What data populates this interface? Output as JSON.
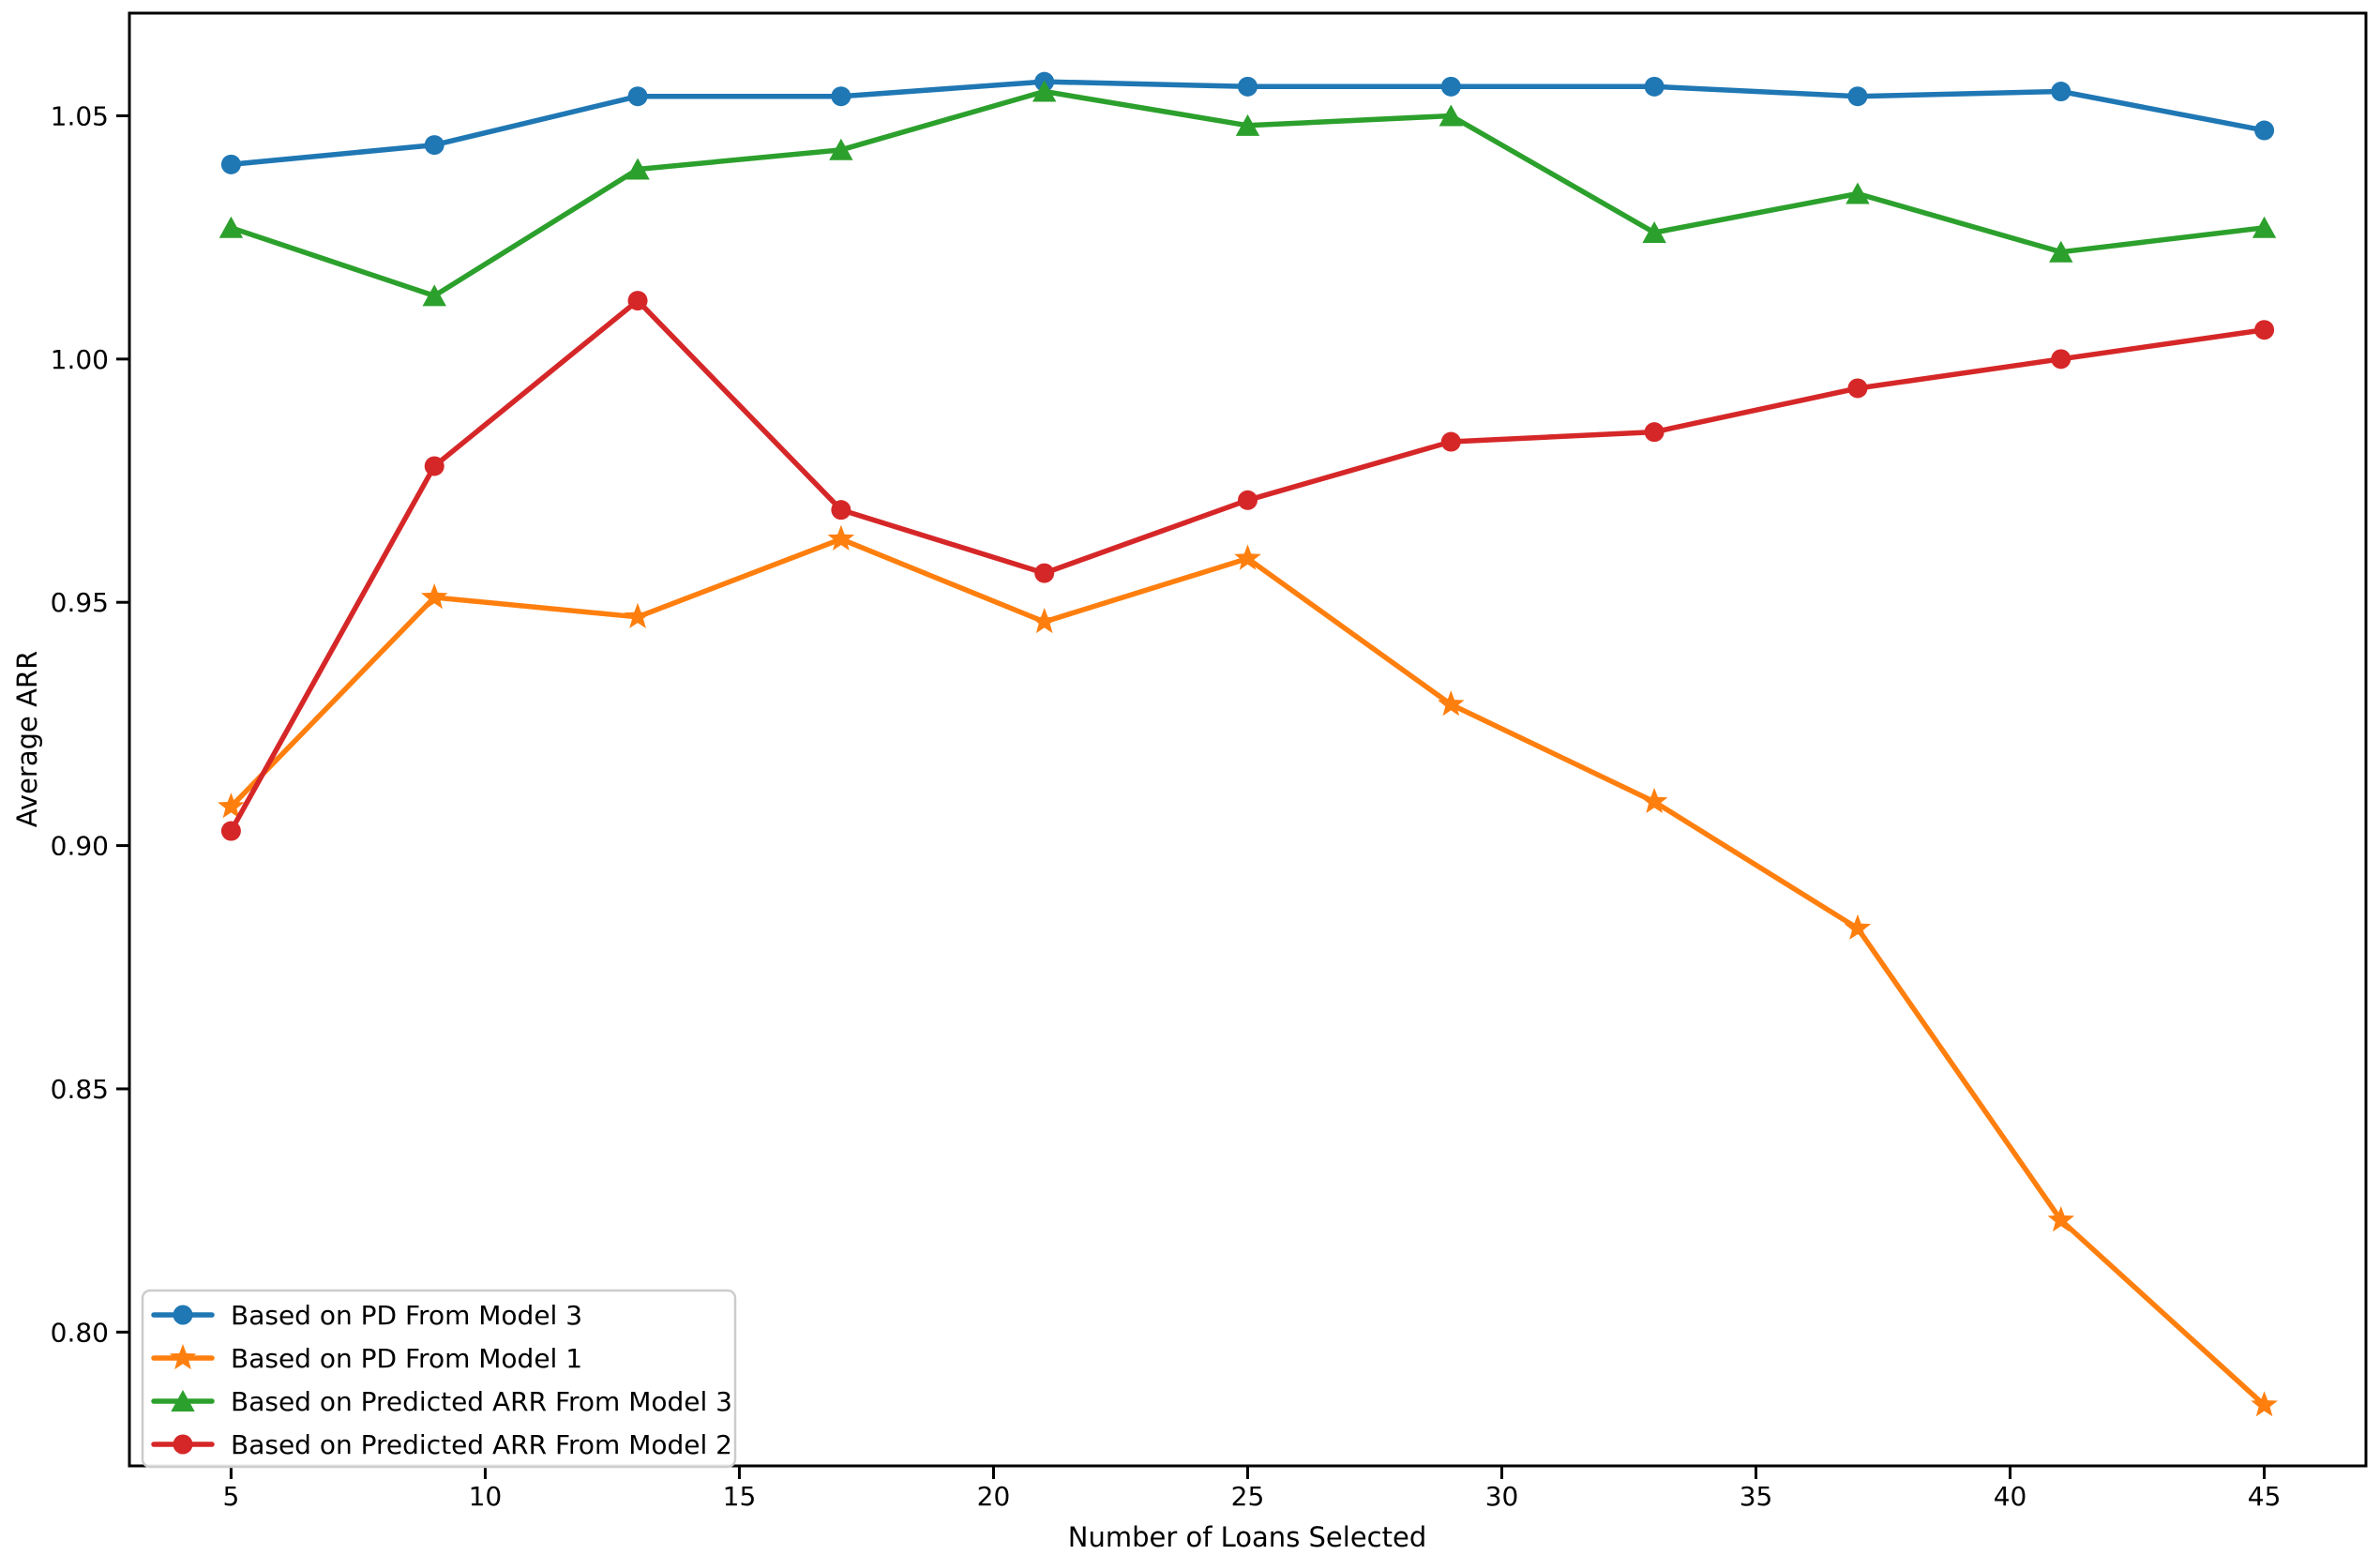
{
  "figure": {
    "background": "#ffffff",
    "axis_color": "#000000",
    "legend_border_color": "#cccccc"
  },
  "chart_data": {
    "type": "line",
    "title": "",
    "xlabel": "Number of Loans Selected",
    "ylabel": "Average ARR",
    "xlim": [
      3,
      47
    ],
    "ylim": [
      0.7725,
      1.0711
    ],
    "grid": false,
    "legend_position": "lower left",
    "x": [
      5,
      9,
      13,
      17,
      21,
      25,
      29,
      33,
      37,
      41,
      45
    ],
    "x_ticks": [
      5,
      10,
      15,
      20,
      25,
      30,
      35,
      40,
      45
    ],
    "y_ticks": [
      "0.80",
      "0.85",
      "0.90",
      "0.95",
      "1.00",
      "1.05"
    ],
    "y_tick_values": [
      0.8,
      0.85,
      0.9,
      0.95,
      1.0,
      1.05
    ],
    "series": [
      {
        "name": "Based on PD From Model 3",
        "color": "#1f77b4",
        "marker": "circle",
        "values": [
          1.04,
          1.044,
          1.054,
          1.054,
          1.057,
          1.056,
          1.056,
          1.056,
          1.054,
          1.055,
          1.047
        ]
      },
      {
        "name": "Based on PD From Model 1",
        "color": "#ff7f0e",
        "marker": "star",
        "values": [
          0.908,
          0.951,
          0.947,
          0.963,
          0.946,
          0.959,
          0.929,
          0.909,
          0.883,
          0.823,
          0.785
        ]
      },
      {
        "name": "Based on Predicted ARR From Model 3",
        "color": "#2ca02c",
        "marker": "triangle",
        "values": [
          1.027,
          1.013,
          1.039,
          1.043,
          1.055,
          1.048,
          1.05,
          1.026,
          1.034,
          1.022,
          1.027
        ]
      },
      {
        "name": "Based on Predicted ARR From Model 2",
        "color": "#d62728",
        "marker": "circle",
        "values": [
          0.903,
          0.978,
          1.012,
          0.969,
          0.956,
          0.971,
          0.983,
          0.985,
          0.994,
          1.0,
          1.006
        ]
      }
    ]
  }
}
